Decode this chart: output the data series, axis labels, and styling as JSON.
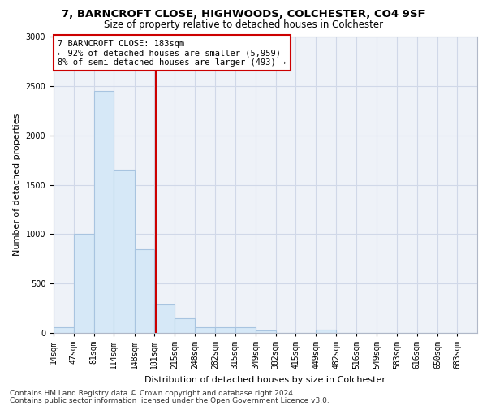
{
  "title1": "7, BARNCROFT CLOSE, HIGHWOODS, COLCHESTER, CO4 9SF",
  "title2": "Size of property relative to detached houses in Colchester",
  "xlabel": "Distribution of detached houses by size in Colchester",
  "ylabel": "Number of detached properties",
  "footnote1": "Contains HM Land Registry data © Crown copyright and database right 2024.",
  "footnote2": "Contains public sector information licensed under the Open Government Licence v3.0.",
  "annotation_line1": "7 BARNCROFT CLOSE: 183sqm",
  "annotation_line2": "← 92% of detached houses are smaller (5,959)",
  "annotation_line3": "8% of semi-detached houses are larger (493) →",
  "property_size": 183,
  "bar_edge_color": "#a8c4e0",
  "bar_face_color": "#d6e8f7",
  "vline_color": "#cc0000",
  "annotation_box_color": "#cc0000",
  "grid_color": "#d0d8e8",
  "bg_color": "#eef2f8",
  "categories": [
    "14sqm",
    "47sqm",
    "81sqm",
    "114sqm",
    "148sqm",
    "181sqm",
    "215sqm",
    "248sqm",
    "282sqm",
    "315sqm",
    "349sqm",
    "382sqm",
    "415sqm",
    "449sqm",
    "482sqm",
    "516sqm",
    "549sqm",
    "583sqm",
    "616sqm",
    "650sqm",
    "683sqm"
  ],
  "bin_edges": [
    14,
    47,
    81,
    114,
    148,
    181,
    215,
    248,
    282,
    315,
    349,
    382,
    415,
    449,
    482,
    516,
    549,
    583,
    616,
    650,
    683,
    716
  ],
  "values": [
    60,
    1000,
    2450,
    1650,
    850,
    290,
    145,
    60,
    60,
    55,
    25,
    0,
    0,
    30,
    0,
    0,
    0,
    0,
    0,
    0,
    0
  ],
  "ylim": [
    0,
    3000
  ],
  "yticks": [
    0,
    500,
    1000,
    1500,
    2000,
    2500,
    3000
  ],
  "title1_fontsize": 9.5,
  "title2_fontsize": 8.5,
  "xlabel_fontsize": 8,
  "ylabel_fontsize": 8,
  "footnote_fontsize": 6.5,
  "annotation_fontsize": 7.5,
  "tick_fontsize": 7
}
